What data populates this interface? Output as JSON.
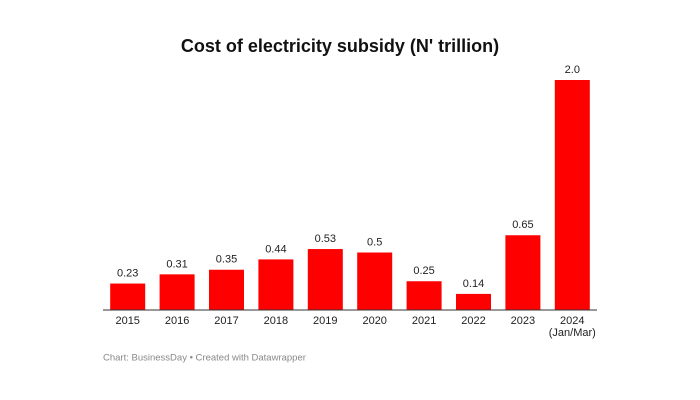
{
  "chart_data": {
    "type": "bar",
    "title": "Cost of electricity subsidy (N' trillion)",
    "categories": [
      "2015",
      "2016",
      "2017",
      "2018",
      "2019",
      "2020",
      "2021",
      "2022",
      "2023",
      "2024 (Jan/Mar)"
    ],
    "values": [
      0.23,
      0.31,
      0.35,
      0.44,
      0.53,
      0.5,
      0.25,
      0.14,
      0.65,
      2
    ],
    "value_labels": [
      "0.23",
      "0.31",
      "0.35",
      "0.44",
      "0.53",
      "0.5",
      "0.25",
      "0.14",
      "0.65",
      "2.0"
    ],
    "color": "#ff0000",
    "ylim": [
      0,
      2
    ],
    "source": "Chart: BusinessDay • Created with Datawrapper"
  }
}
